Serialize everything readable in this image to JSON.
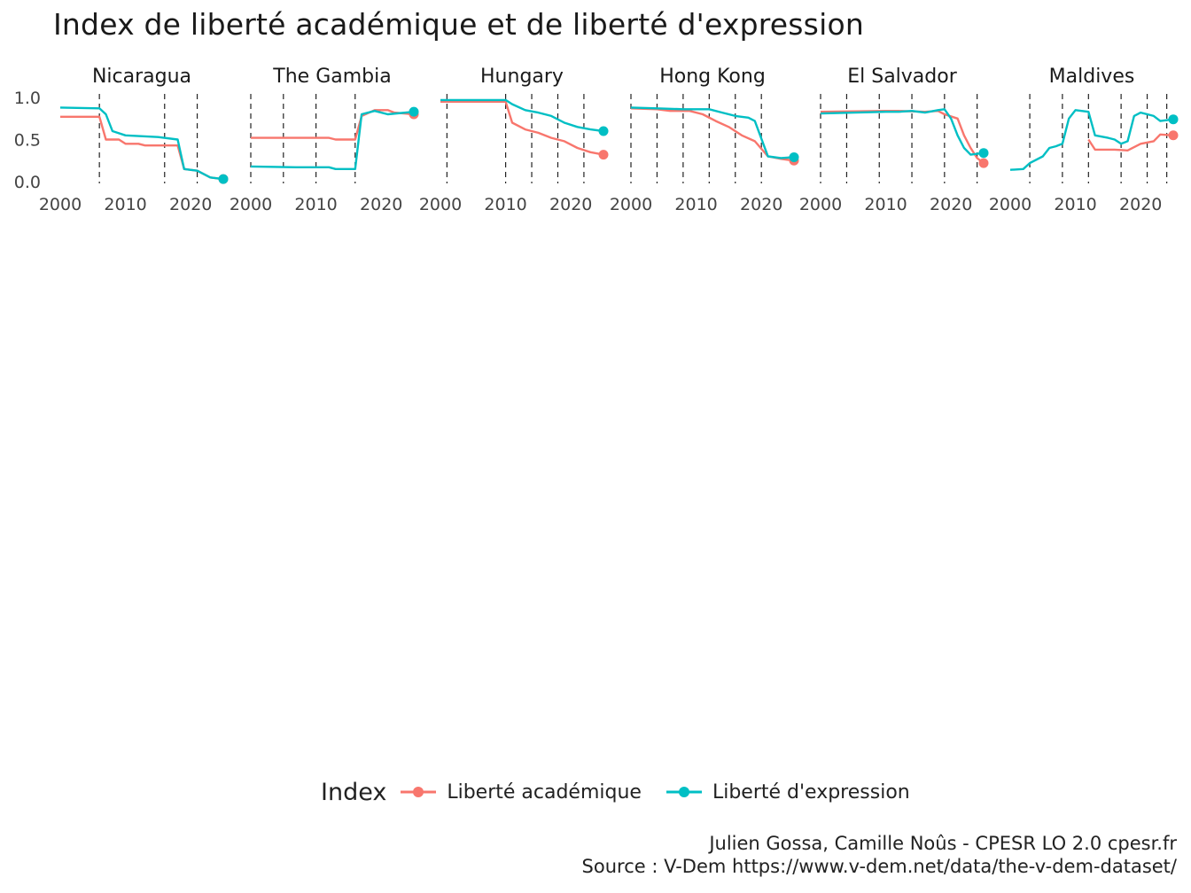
{
  "title": "Index de liberté académique et de liberté d'expression",
  "legend": {
    "title": "Index",
    "items": [
      {
        "label": "Liberté académique",
        "color": "#F8766D"
      },
      {
        "label": "Liberté d'expression",
        "color": "#00BFC4"
      }
    ]
  },
  "caption": {
    "line1": "Julien Gossa, Camille Noûs - CPESR LO 2.0 cpesr.fr",
    "line2": "Source : V-Dem https://www.v-dem.net/data/the-v-dem-dataset/"
  },
  "chart_data": {
    "type": "line",
    "facet_layout": "6 columns x 4 rows",
    "x_ticks": [
      2000,
      2010,
      2020
    ],
    "y_ticks": [
      "0.0",
      "0.5",
      "1.0"
    ],
    "xlim": [
      2000,
      2025
    ],
    "ylim": [
      0,
      1
    ],
    "series_names": [
      "Liberté académique",
      "Liberté d'expression"
    ],
    "series_colors": [
      "#F8766D",
      "#00BFC4"
    ],
    "vertical_dashed_lines": "yes",
    "endpoint_markers": "yes",
    "facets": [
      {
        "name": "Nicaragua",
        "vlines": [
          2006,
          2016,
          2021
        ],
        "academic": [
          [
            2000,
            0.77
          ],
          [
            2006,
            0.77
          ],
          [
            2007,
            0.5
          ],
          [
            2009,
            0.5
          ],
          [
            2010,
            0.45
          ],
          [
            2012,
            0.45
          ],
          [
            2013,
            0.43
          ],
          [
            2018,
            0.43
          ],
          [
            2019,
            0.15
          ],
          [
            2021,
            0.13
          ],
          [
            2023,
            0.05
          ],
          [
            2025,
            0.03
          ]
        ],
        "expression": [
          [
            2000,
            0.88
          ],
          [
            2006,
            0.87
          ],
          [
            2007,
            0.8
          ],
          [
            2008,
            0.6
          ],
          [
            2010,
            0.55
          ],
          [
            2015,
            0.53
          ],
          [
            2018,
            0.5
          ],
          [
            2019,
            0.15
          ],
          [
            2021,
            0.13
          ],
          [
            2023,
            0.05
          ],
          [
            2025,
            0.03
          ]
        ]
      },
      {
        "name": "The Gambia",
        "vlines": [
          2000,
          2005,
          2010,
          2016
        ],
        "academic": [
          [
            2000,
            0.52
          ],
          [
            2012,
            0.52
          ],
          [
            2013,
            0.5
          ],
          [
            2016,
            0.5
          ],
          [
            2017,
            0.78
          ],
          [
            2019,
            0.85
          ],
          [
            2021,
            0.85
          ],
          [
            2022,
            0.82
          ],
          [
            2025,
            0.8
          ]
        ],
        "expression": [
          [
            2000,
            0.18
          ],
          [
            2007,
            0.17
          ],
          [
            2012,
            0.17
          ],
          [
            2013,
            0.15
          ],
          [
            2016,
            0.15
          ],
          [
            2017,
            0.8
          ],
          [
            2019,
            0.84
          ],
          [
            2021,
            0.8
          ],
          [
            2025,
            0.83
          ]
        ]
      },
      {
        "name": "Hungary",
        "vlines": [
          2001,
          2010,
          2014,
          2018,
          2022
        ],
        "academic": [
          [
            2000,
            0.95
          ],
          [
            2010,
            0.95
          ],
          [
            2011,
            0.7
          ],
          [
            2013,
            0.62
          ],
          [
            2015,
            0.58
          ],
          [
            2017,
            0.52
          ],
          [
            2019,
            0.48
          ],
          [
            2021,
            0.4
          ],
          [
            2023,
            0.35
          ],
          [
            2025,
            0.32
          ]
        ],
        "expression": [
          [
            2000,
            0.97
          ],
          [
            2010,
            0.97
          ],
          [
            2011,
            0.92
          ],
          [
            2013,
            0.85
          ],
          [
            2015,
            0.82
          ],
          [
            2017,
            0.78
          ],
          [
            2019,
            0.7
          ],
          [
            2021,
            0.65
          ],
          [
            2023,
            0.62
          ],
          [
            2025,
            0.6
          ]
        ]
      },
      {
        "name": "Hong Kong",
        "vlines": [
          2000,
          2004,
          2008,
          2012,
          2016,
          2020
        ],
        "academic": [
          [
            2000,
            0.87
          ],
          [
            2004,
            0.86
          ],
          [
            2006,
            0.84
          ],
          [
            2009,
            0.84
          ],
          [
            2011,
            0.8
          ],
          [
            2013,
            0.72
          ],
          [
            2015,
            0.65
          ],
          [
            2017,
            0.55
          ],
          [
            2019,
            0.48
          ],
          [
            2021,
            0.3
          ],
          [
            2023,
            0.27
          ],
          [
            2025,
            0.25
          ]
        ],
        "expression": [
          [
            2000,
            0.88
          ],
          [
            2004,
            0.87
          ],
          [
            2008,
            0.86
          ],
          [
            2012,
            0.86
          ],
          [
            2014,
            0.82
          ],
          [
            2016,
            0.78
          ],
          [
            2018,
            0.76
          ],
          [
            2019,
            0.72
          ],
          [
            2021,
            0.3
          ],
          [
            2023,
            0.28
          ],
          [
            2025,
            0.29
          ]
        ]
      },
      {
        "name": "El Salvador",
        "vlines": [
          2000,
          2004,
          2009,
          2014,
          2019,
          2024
        ],
        "academic": [
          [
            2000,
            0.83
          ],
          [
            2010,
            0.84
          ],
          [
            2012,
            0.84
          ],
          [
            2016,
            0.83
          ],
          [
            2018,
            0.84
          ],
          [
            2019,
            0.8
          ],
          [
            2021,
            0.75
          ],
          [
            2022,
            0.55
          ],
          [
            2023,
            0.4
          ],
          [
            2024,
            0.28
          ],
          [
            2025,
            0.22
          ]
        ],
        "expression": [
          [
            2000,
            0.81
          ],
          [
            2010,
            0.83
          ],
          [
            2012,
            0.83
          ],
          [
            2014,
            0.84
          ],
          [
            2016,
            0.82
          ],
          [
            2018,
            0.85
          ],
          [
            2019,
            0.86
          ],
          [
            2020,
            0.75
          ],
          [
            2021,
            0.55
          ],
          [
            2022,
            0.4
          ],
          [
            2023,
            0.32
          ],
          [
            2025,
            0.34
          ]
        ]
      },
      {
        "name": "Maldives",
        "vlines": [
          2003,
          2008,
          2012,
          2017,
          2021,
          2024
        ],
        "academic": [
          [
            2012,
            0.5
          ],
          [
            2013,
            0.38
          ],
          [
            2016,
            0.38
          ],
          [
            2018,
            0.37
          ],
          [
            2020,
            0.45
          ],
          [
            2022,
            0.48
          ],
          [
            2023,
            0.56
          ],
          [
            2025,
            0.55
          ]
        ],
        "expression": [
          [
            2000,
            0.14
          ],
          [
            2002,
            0.15
          ],
          [
            2003,
            0.22
          ],
          [
            2005,
            0.3
          ],
          [
            2006,
            0.4
          ],
          [
            2007,
            0.42
          ],
          [
            2008,
            0.45
          ],
          [
            2009,
            0.75
          ],
          [
            2010,
            0.85
          ],
          [
            2012,
            0.83
          ],
          [
            2013,
            0.55
          ],
          [
            2015,
            0.52
          ],
          [
            2016,
            0.5
          ],
          [
            2017,
            0.45
          ],
          [
            2018,
            0.48
          ],
          [
            2019,
            0.78
          ],
          [
            2020,
            0.82
          ],
          [
            2022,
            0.78
          ],
          [
            2023,
            0.72
          ],
          [
            2025,
            0.74
          ]
        ]
      }
    ]
  }
}
